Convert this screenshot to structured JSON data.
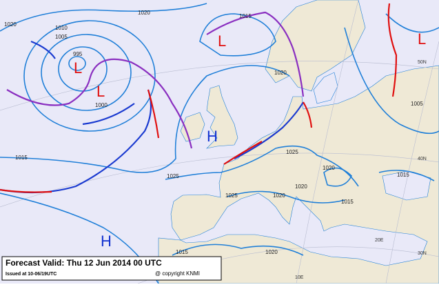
{
  "footer": {
    "title": "Forecast Valid:  Thu 12 Jun 2014 00 UTC",
    "issued": "Issued at 10-06/19UTC",
    "copyright": "@ copyright KNMI"
  },
  "isobar_labels": [
    "1020",
    "1020",
    "1015",
    "1010",
    "1005",
    "995",
    "1000",
    "1015",
    "1020",
    "1025",
    "1025",
    "1020",
    "1020",
    "1020",
    "1025",
    "1015",
    "1015",
    "1020",
    "1005",
    "1015"
  ],
  "pressure_centers": [
    "L",
    "L",
    "L",
    "L",
    "H",
    "H"
  ],
  "grid_labels": [
    "50N",
    "40N",
    "30N",
    "10E",
    "20E"
  ]
}
